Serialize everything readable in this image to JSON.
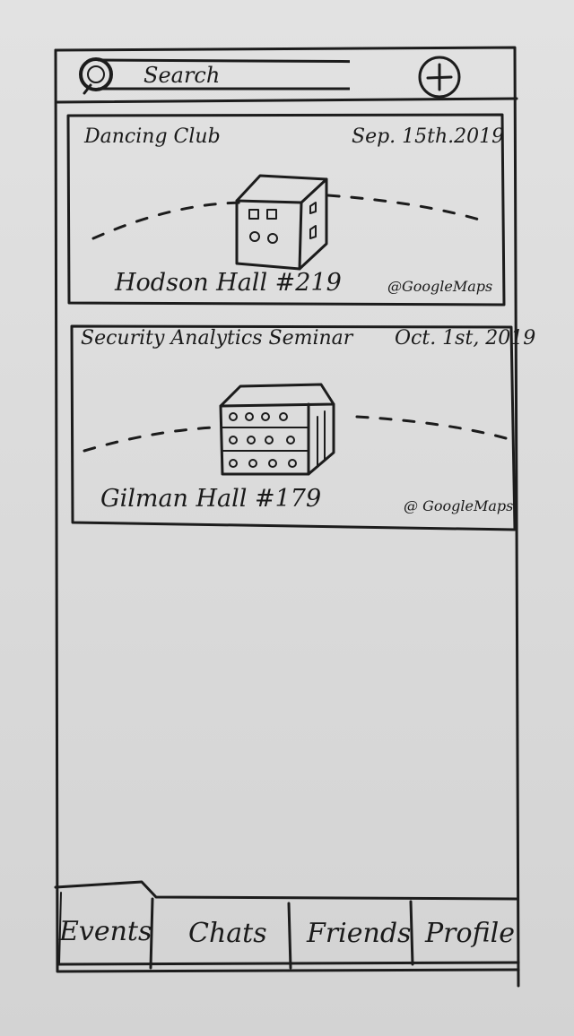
{
  "header": {
    "search_placeholder": "Search",
    "search_icon": "search-icon",
    "add_icon": "plus-circle-icon"
  },
  "events": [
    {
      "title": "Dancing Club",
      "date": "Sep. 15th.2019",
      "location": "Hodson Hall #219",
      "attribution": "@GoogleMaps",
      "image_icon": "building-icon"
    },
    {
      "title": "Security Analytics Seminar",
      "date": "Oct. 1st, 2019",
      "location": "Gilman Hall #179",
      "attribution": "@ GoogleMaps",
      "image_icon": "building-icon"
    }
  ],
  "tabs": [
    {
      "label": "Events",
      "active": true
    },
    {
      "label": "Chats",
      "active": false
    },
    {
      "label": "Friends",
      "active": false
    },
    {
      "label": "Profile",
      "active": false
    }
  ]
}
